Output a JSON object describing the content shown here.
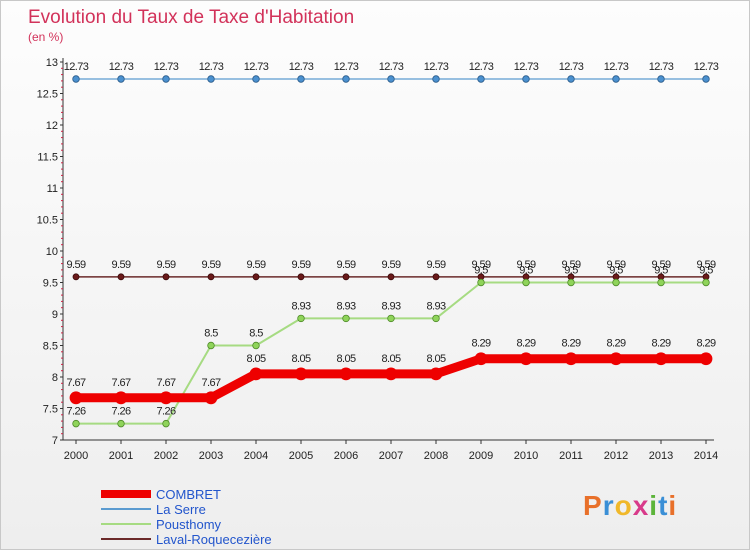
{
  "chart_data": {
    "type": "line",
    "title": "Evolution du Taux de Taxe d'Habitation",
    "ylabel": "(en %)",
    "xlabel": "",
    "ylim": [
      7,
      13
    ],
    "yticks": [
      7,
      7.5,
      8,
      8.5,
      9,
      9.5,
      10,
      10.5,
      11,
      11.5,
      12,
      12.5,
      13
    ],
    "categories": [
      "2000",
      "2001",
      "2002",
      "2003",
      "2004",
      "2005",
      "2006",
      "2007",
      "2008",
      "2009",
      "2010",
      "2011",
      "2012",
      "2013",
      "2014"
    ],
    "series": [
      {
        "name": "COMBRET",
        "color": "#ee0000",
        "values": [
          7.67,
          7.67,
          7.67,
          7.67,
          8.05,
          8.05,
          8.05,
          8.05,
          8.05,
          8.29,
          8.29,
          8.29,
          8.29,
          8.29,
          8.29
        ],
        "labels": [
          "7.67",
          "7.67",
          "7.67",
          "7.67",
          "8.05",
          "8.05",
          "8.05",
          "8.05",
          "8.05",
          "8.29",
          "8.29",
          "8.29",
          "8.29",
          "8.29",
          "8.29"
        ]
      },
      {
        "name": "La Serre",
        "color": "#5b9bd0",
        "values": [
          12.73,
          12.73,
          12.73,
          12.73,
          12.73,
          12.73,
          12.73,
          12.73,
          12.73,
          12.73,
          12.73,
          12.73,
          12.73,
          12.73,
          12.73
        ],
        "labels": [
          "12.73",
          "12.73",
          "12.73",
          "12.73",
          "12.73",
          "12.73",
          "12.73",
          "12.73",
          "12.73",
          "12.73",
          "12.73",
          "12.73",
          "12.73",
          "12.73",
          "12.73"
        ]
      },
      {
        "name": "Pousthomy",
        "color": "#a6db82",
        "values": [
          7.26,
          7.26,
          7.26,
          8.5,
          8.5,
          8.93,
          8.93,
          8.93,
          8.93,
          9.5,
          9.5,
          9.5,
          9.5,
          9.5,
          9.5
        ],
        "labels": [
          "7.26",
          "7.26",
          "7.26",
          "8.5",
          "8.5",
          "8.93",
          "8.93",
          "8.93",
          "8.93",
          "9.5",
          "9.5",
          "9.5",
          "9.5",
          "9.5",
          "9.5"
        ]
      },
      {
        "name": "Laval-Roquecezière",
        "color": "#6b2a2a",
        "values": [
          9.59,
          9.59,
          9.59,
          9.59,
          9.59,
          9.59,
          9.59,
          9.59,
          9.59,
          9.59,
          9.59,
          9.59,
          9.59,
          9.59,
          9.59
        ],
        "labels": [
          "9.59",
          "9.59",
          "9.59",
          "9.59",
          "9.59",
          "9.59",
          "9.59",
          "9.59",
          "9.59",
          "9.59",
          "9.59",
          "9.59",
          "9.59",
          "9.59",
          "9.59"
        ]
      }
    ]
  },
  "header": {
    "title": "Evolution du Taux de Taxe d'Habitation",
    "unit": "(en %)"
  },
  "legend": {
    "items": [
      "COMBRET",
      "La Serre",
      "Pousthomy",
      "Laval-Roquecezière"
    ]
  },
  "logo": {
    "text": "Proxiti",
    "colors": [
      "#e8702a",
      "#3a8fd6",
      "#f0b82a",
      "#d83a8a",
      "#5cb43a",
      "#3a8fd6",
      "#e8702a"
    ]
  }
}
